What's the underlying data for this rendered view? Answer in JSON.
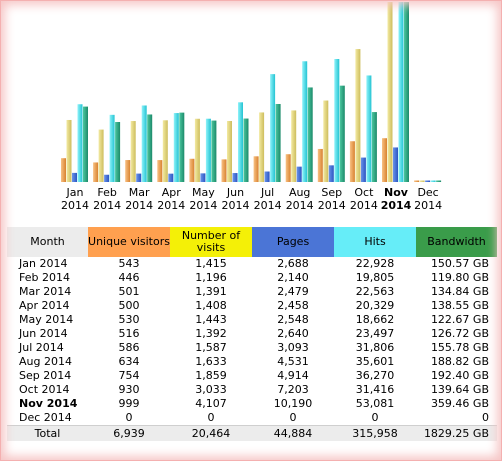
{
  "colors": {
    "month_header": "#ececec",
    "visitors": "#ffa04f",
    "visits": "#f4f007",
    "pages": "#4b75d6",
    "hits": "#66edf8",
    "bandwidth": "#3a9c4a"
  },
  "chart_data": {
    "type": "bar",
    "categories": [
      "Jan 2014",
      "Feb 2014",
      "Mar 2014",
      "Apr 2014",
      "May 2014",
      "Jun 2014",
      "Jul 2014",
      "Aug 2014",
      "Sep 2014",
      "Oct 2014",
      "Nov 2014",
      "Dec 2014"
    ],
    "series": [
      {
        "name": "Unique visitors",
        "values": [
          543,
          446,
          501,
          500,
          530,
          516,
          586,
          634,
          754,
          930,
          999,
          0
        ]
      },
      {
        "name": "Number of visits",
        "values": [
          1415,
          1196,
          1391,
          1408,
          1443,
          1392,
          1587,
          1633,
          1859,
          3033,
          4107,
          0
        ]
      },
      {
        "name": "Pages",
        "values": [
          2688,
          2140,
          2479,
          2458,
          2548,
          2640,
          3093,
          4531,
          4914,
          7203,
          10190,
          0
        ]
      },
      {
        "name": "Hits",
        "values": [
          22928,
          19805,
          22563,
          20329,
          18662,
          23497,
          31806,
          35601,
          36270,
          31416,
          53081,
          0
        ]
      },
      {
        "name": "Bandwidth",
        "values": [
          150.57,
          119.8,
          134.84,
          138.55,
          122.67,
          126.72,
          155.78,
          188.82,
          192.4,
          139.64,
          359.46,
          0
        ]
      }
    ],
    "current_month_index": 10
  },
  "labels": {
    "months": [
      {
        "m": "Jan",
        "y": "2014"
      },
      {
        "m": "Feb",
        "y": "2014"
      },
      {
        "m": "Mar",
        "y": "2014"
      },
      {
        "m": "Apr",
        "y": "2014"
      },
      {
        "m": "May",
        "y": "2014"
      },
      {
        "m": "Jun",
        "y": "2014"
      },
      {
        "m": "Jul",
        "y": "2014"
      },
      {
        "m": "Aug",
        "y": "2014"
      },
      {
        "m": "Sep",
        "y": "2014"
      },
      {
        "m": "Oct",
        "y": "2014"
      },
      {
        "m": "Nov",
        "y": "2014"
      },
      {
        "m": "Dec",
        "y": "2014"
      }
    ]
  },
  "table": {
    "headers": {
      "month": "Month",
      "visitors": "Unique visitors",
      "visits": "Number of visits",
      "pages": "Pages",
      "hits": "Hits",
      "bandwidth": "Bandwidth"
    },
    "rows": [
      {
        "month": "Jan 2014",
        "visitors": "543",
        "visits": "1,415",
        "pages": "2,688",
        "hits": "22,928",
        "bandwidth": "150.57 GB"
      },
      {
        "month": "Feb 2014",
        "visitors": "446",
        "visits": "1,196",
        "pages": "2,140",
        "hits": "19,805",
        "bandwidth": "119.80 GB"
      },
      {
        "month": "Mar 2014",
        "visitors": "501",
        "visits": "1,391",
        "pages": "2,479",
        "hits": "22,563",
        "bandwidth": "134.84 GB"
      },
      {
        "month": "Apr 2014",
        "visitors": "500",
        "visits": "1,408",
        "pages": "2,458",
        "hits": "20,329",
        "bandwidth": "138.55 GB"
      },
      {
        "month": "May 2014",
        "visitors": "530",
        "visits": "1,443",
        "pages": "2,548",
        "hits": "18,662",
        "bandwidth": "122.67 GB"
      },
      {
        "month": "Jun 2014",
        "visitors": "516",
        "visits": "1,392",
        "pages": "2,640",
        "hits": "23,497",
        "bandwidth": "126.72 GB"
      },
      {
        "month": "Jul 2014",
        "visitors": "586",
        "visits": "1,587",
        "pages": "3,093",
        "hits": "31,806",
        "bandwidth": "155.78 GB"
      },
      {
        "month": "Aug 2014",
        "visitors": "634",
        "visits": "1,633",
        "pages": "4,531",
        "hits": "35,601",
        "bandwidth": "188.82 GB"
      },
      {
        "month": "Sep 2014",
        "visitors": "754",
        "visits": "1,859",
        "pages": "4,914",
        "hits": "36,270",
        "bandwidth": "192.40 GB"
      },
      {
        "month": "Oct 2014",
        "visitors": "930",
        "visits": "3,033",
        "pages": "7,203",
        "hits": "31,416",
        "bandwidth": "139.64 GB"
      },
      {
        "month": "Nov 2014",
        "visitors": "999",
        "visits": "4,107",
        "pages": "10,190",
        "hits": "53,081",
        "bandwidth": "359.46 GB"
      },
      {
        "month": "Dec 2014",
        "visitors": "0",
        "visits": "0",
        "pages": "0",
        "hits": "0",
        "bandwidth": "0"
      }
    ],
    "total": {
      "month": "Total",
      "visitors": "6,939",
      "visits": "20,464",
      "pages": "44,884",
      "hits": "315,958",
      "bandwidth": "1829.25 GB"
    }
  }
}
